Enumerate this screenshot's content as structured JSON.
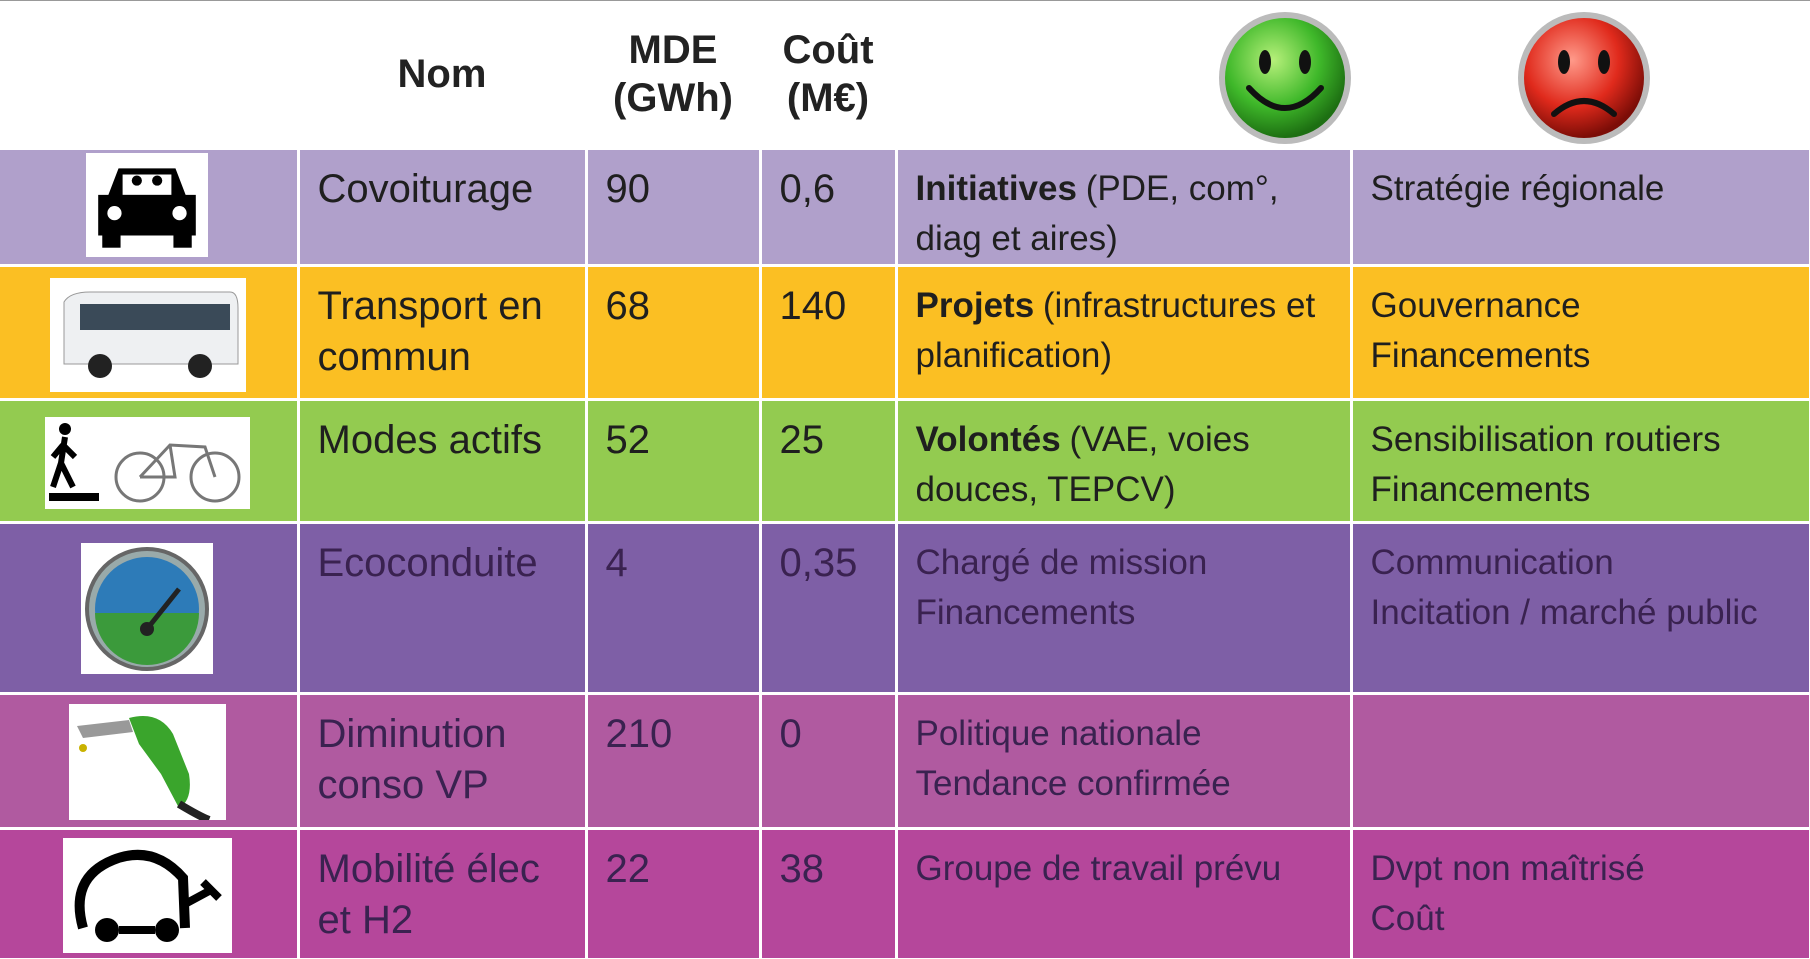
{
  "header": {
    "nom": "Nom",
    "mde": "MDE (GWh)",
    "cout": "Coût (M€)"
  },
  "table": {
    "rows": [
      {
        "nom": "Covoiturage",
        "mde": "90",
        "cout": "0,6",
        "pros_bold": "Initiatives",
        "pros": "(PDE, com°, diag et aires)",
        "cons": [
          "Stratégie régionale"
        ],
        "color": "#b0a0cb",
        "text_color": "#1f1f1f"
      },
      {
        "nom": "Transport en commun",
        "mde": "68",
        "cout": "140",
        "pros_bold": "Projets",
        "pros": "(infrastructures et planification)",
        "cons": [
          "Gouvernance",
          "Financements"
        ],
        "color": "#fbbf23",
        "text_color": "#1f1f1f"
      },
      {
        "nom": "Modes actifs",
        "mde": "52",
        "cout": "25",
        "pros_bold": "Volontés",
        "pros": "(VAE, voies douces, TEPCV)",
        "cons": [
          "Sensibilisation routiers",
          "Financements"
        ],
        "color": "#93cb50",
        "text_color": "#1f1f1f"
      },
      {
        "nom": "Ecoconduite",
        "mde": "4",
        "cout": "0,35",
        "pros": "Chargé de mission Financements",
        "cons": [
          "Communication",
          "Incitation / marché public"
        ],
        "color": "#7e5fa6",
        "text_color": "#3a2250"
      },
      {
        "nom": "Diminution conso VP",
        "mde": "210",
        "cout": "0",
        "pros": "Politique nationale Tendance confirmée",
        "cons": [],
        "color": "#b05aa0",
        "text_color": "#3a2250"
      },
      {
        "nom": "Mobilité élec et H2",
        "mde": "22",
        "cout": "38",
        "pros": "Groupe de travail prévu",
        "cons": [
          "Dvpt non maîtrisé",
          "Coût"
        ],
        "color": "#b5479b",
        "text_color": "#3a2250"
      }
    ]
  }
}
